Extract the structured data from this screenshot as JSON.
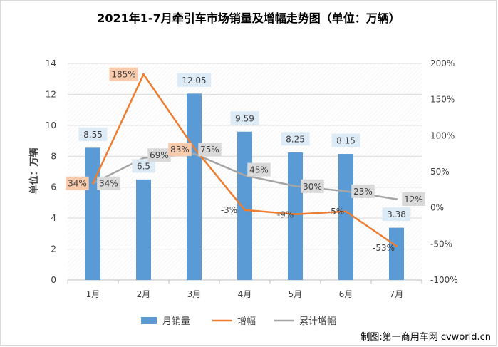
{
  "chart_data": {
    "type": "bar",
    "title": "2021年1-7月牵引车市场销量及增幅走势图（单位：万辆）",
    "ylabel": "单位：万辆",
    "categories": [
      "1月",
      "2月",
      "3月",
      "4月",
      "5月",
      "6月",
      "7月"
    ],
    "ylim": [
      0,
      14
    ],
    "yticks": [
      "0",
      "2",
      "4",
      "6",
      "8",
      "10",
      "12",
      "14"
    ],
    "y2lim": [
      -100,
      200
    ],
    "y2ticks": [
      "-100%",
      "-50%",
      "0%",
      "50%",
      "100%",
      "150%",
      "200%"
    ],
    "series": [
      {
        "name": "月销量",
        "type": "bar",
        "axis": "left",
        "color": "#5b9bd5",
        "values": [
          8.55,
          6.5,
          12.05,
          9.59,
          8.25,
          8.15,
          3.38
        ],
        "labels": [
          "8.55",
          "6.5",
          "12.05",
          "9.59",
          "8.25",
          "8.15",
          "3.38"
        ]
      },
      {
        "name": "增幅",
        "type": "line",
        "axis": "right",
        "color": "#ed7d31",
        "values": [
          34,
          185,
          83,
          -3,
          -9,
          -5,
          -53
        ],
        "labels": [
          "34%",
          "185%",
          "83%",
          "-3%",
          "-9%",
          "-5%",
          "-53%"
        ]
      },
      {
        "name": "累计增幅",
        "type": "line",
        "axis": "right",
        "color": "#a5a5a5",
        "values": [
          34,
          69,
          75,
          45,
          30,
          23,
          12
        ],
        "labels": [
          "34%",
          "69%",
          "75%",
          "45%",
          "30%",
          "23%",
          "12%"
        ]
      }
    ],
    "grid": true,
    "legend": "bottom"
  },
  "credit": "制图:第一商用车网 cvworld.cn"
}
